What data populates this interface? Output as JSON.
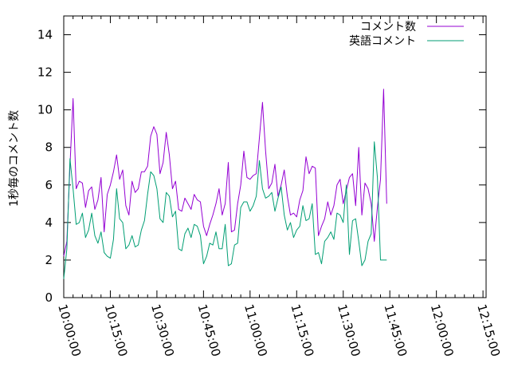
{
  "chart_data": {
    "type": "line",
    "title": "",
    "xlabel": "",
    "ylabel": "1秒毎のコメント数",
    "ylim": [
      0,
      15
    ],
    "yticks": [
      0,
      2,
      4,
      6,
      8,
      10,
      12,
      14
    ],
    "xlim": [
      "10:00:00",
      "12:16:00"
    ],
    "xticks": [
      "10:00:00",
      "10:15:00",
      "10:30:00",
      "10:45:00",
      "11:00:00",
      "11:15:00",
      "11:30:00",
      "11:45:00",
      "12:00:00",
      "12:15:00"
    ],
    "legend_position": "top-right",
    "grid": false,
    "series": [
      {
        "name": "コメント数",
        "color": "#9400d3",
        "points": [
          [
            "10:00:00",
            2.2
          ],
          [
            "10:01:00",
            3.0
          ],
          [
            "10:02:00",
            7.0
          ],
          [
            "10:03:00",
            10.6
          ],
          [
            "10:04:00",
            5.8
          ],
          [
            "10:05:00",
            6.2
          ],
          [
            "10:06:00",
            6.1
          ],
          [
            "10:07:00",
            4.8
          ],
          [
            "10:08:00",
            5.7
          ],
          [
            "10:09:00",
            5.9
          ],
          [
            "10:10:00",
            4.7
          ],
          [
            "10:11:00",
            5.2
          ],
          [
            "10:12:00",
            6.4
          ],
          [
            "10:13:00",
            3.5
          ],
          [
            "10:14:00",
            5.5
          ],
          [
            "10:15:00",
            6.0
          ],
          [
            "10:16:00",
            6.7
          ],
          [
            "10:17:00",
            7.6
          ],
          [
            "10:18:00",
            6.3
          ],
          [
            "10:19:00",
            6.8
          ],
          [
            "10:20:00",
            4.9
          ],
          [
            "10:21:00",
            4.4
          ],
          [
            "10:22:00",
            6.2
          ],
          [
            "10:23:00",
            5.6
          ],
          [
            "10:24:00",
            5.8
          ],
          [
            "10:25:00",
            6.7
          ],
          [
            "10:26:00",
            6.7
          ],
          [
            "10:27:00",
            7.0
          ],
          [
            "10:28:00",
            8.6
          ],
          [
            "10:29:00",
            9.1
          ],
          [
            "10:30:00",
            8.7
          ],
          [
            "10:31:00",
            6.6
          ],
          [
            "10:32:00",
            7.2
          ],
          [
            "10:33:00",
            8.8
          ],
          [
            "10:34:00",
            7.6
          ],
          [
            "10:35:00",
            5.8
          ],
          [
            "10:36:00",
            6.2
          ],
          [
            "10:37:00",
            4.7
          ],
          [
            "10:38:00",
            4.6
          ],
          [
            "10:39:00",
            5.3
          ],
          [
            "10:40:00",
            5.0
          ],
          [
            "10:41:00",
            4.7
          ],
          [
            "10:42:00",
            5.5
          ],
          [
            "10:43:00",
            5.2
          ],
          [
            "10:44:00",
            5.1
          ],
          [
            "10:45:00",
            3.8
          ],
          [
            "10:46:00",
            3.3
          ],
          [
            "10:47:00",
            3.9
          ],
          [
            "10:48:00",
            4.4
          ],
          [
            "10:49:00",
            5.0
          ],
          [
            "10:50:00",
            5.8
          ],
          [
            "10:51:00",
            4.4
          ],
          [
            "10:52:00",
            5.0
          ],
          [
            "10:53:00",
            7.2
          ],
          [
            "10:54:00",
            3.5
          ],
          [
            "10:55:00",
            3.6
          ],
          [
            "10:56:00",
            5.0
          ],
          [
            "10:57:00",
            6.0
          ],
          [
            "10:58:00",
            7.8
          ],
          [
            "10:59:00",
            6.4
          ],
          [
            "11:00:00",
            6.3
          ],
          [
            "11:01:00",
            6.5
          ],
          [
            "11:02:00",
            6.6
          ],
          [
            "11:03:00",
            8.5
          ],
          [
            "11:04:00",
            10.4
          ],
          [
            "11:05:00",
            7.8
          ],
          [
            "11:06:00",
            5.8
          ],
          [
            "11:07:00",
            6.1
          ],
          [
            "11:08:00",
            7.1
          ],
          [
            "11:09:00",
            5.4
          ],
          [
            "11:10:00",
            6.0
          ],
          [
            "11:11:00",
            6.8
          ],
          [
            "11:12:00",
            5.4
          ],
          [
            "11:13:00",
            4.4
          ],
          [
            "11:14:00",
            4.5
          ],
          [
            "11:15:00",
            4.3
          ],
          [
            "11:16:00",
            5.2
          ],
          [
            "11:17:00",
            5.7
          ],
          [
            "11:18:00",
            7.5
          ],
          [
            "11:19:00",
            6.6
          ],
          [
            "11:20:00",
            7.0
          ],
          [
            "11:21:00",
            6.9
          ],
          [
            "11:22:00",
            3.3
          ],
          [
            "11:23:00",
            3.8
          ],
          [
            "11:24:00",
            4.2
          ],
          [
            "11:25:00",
            5.1
          ],
          [
            "11:26:00",
            4.4
          ],
          [
            "11:27:00",
            4.9
          ],
          [
            "11:28:00",
            6.0
          ],
          [
            "11:29:00",
            6.3
          ],
          [
            "11:30:00",
            5.0
          ],
          [
            "11:31:00",
            5.7
          ],
          [
            "11:32:00",
            6.4
          ],
          [
            "11:33:00",
            6.6
          ],
          [
            "11:34:00",
            4.9
          ],
          [
            "11:35:00",
            8.0
          ],
          [
            "11:36:00",
            4.4
          ],
          [
            "11:37:00",
            6.1
          ],
          [
            "11:38:00",
            5.8
          ],
          [
            "11:39:00",
            5.0
          ],
          [
            "11:40:00",
            3.0
          ],
          [
            "11:41:00",
            4.8
          ],
          [
            "11:42:00",
            6.3
          ],
          [
            "11:43:00",
            11.1
          ],
          [
            "11:44:00",
            5.0
          ]
        ]
      },
      {
        "name": "英語コメント",
        "color": "#009e73",
        "points": [
          [
            "10:00:00",
            1.0
          ],
          [
            "10:01:00",
            2.6
          ],
          [
            "10:02:00",
            7.4
          ],
          [
            "10:03:00",
            5.8
          ],
          [
            "10:04:00",
            3.9
          ],
          [
            "10:05:00",
            4.0
          ],
          [
            "10:06:00",
            4.5
          ],
          [
            "10:07:00",
            3.2
          ],
          [
            "10:08:00",
            3.6
          ],
          [
            "10:09:00",
            4.5
          ],
          [
            "10:10:00",
            3.3
          ],
          [
            "10:11:00",
            2.9
          ],
          [
            "10:12:00",
            3.5
          ],
          [
            "10:13:00",
            2.4
          ],
          [
            "10:14:00",
            2.2
          ],
          [
            "10:15:00",
            2.1
          ],
          [
            "10:16:00",
            3.1
          ],
          [
            "10:17:00",
            5.8
          ],
          [
            "10:18:00",
            4.2
          ],
          [
            "10:19:00",
            4.0
          ],
          [
            "10:20:00",
            2.6
          ],
          [
            "10:21:00",
            2.8
          ],
          [
            "10:22:00",
            3.3
          ],
          [
            "10:23:00",
            2.7
          ],
          [
            "10:24:00",
            2.8
          ],
          [
            "10:25:00",
            3.6
          ],
          [
            "10:26:00",
            4.1
          ],
          [
            "10:27:00",
            5.5
          ],
          [
            "10:28:00",
            6.7
          ],
          [
            "10:29:00",
            6.5
          ],
          [
            "10:30:00",
            5.8
          ],
          [
            "10:31:00",
            4.2
          ],
          [
            "10:32:00",
            4.0
          ],
          [
            "10:33:00",
            5.6
          ],
          [
            "10:34:00",
            5.4
          ],
          [
            "10:35:00",
            4.3
          ],
          [
            "10:36:00",
            4.6
          ],
          [
            "10:37:00",
            2.6
          ],
          [
            "10:38:00",
            2.5
          ],
          [
            "10:39:00",
            3.4
          ],
          [
            "10:40:00",
            3.7
          ],
          [
            "10:41:00",
            3.2
          ],
          [
            "10:42:00",
            3.9
          ],
          [
            "10:43:00",
            3.8
          ],
          [
            "10:44:00",
            3.3
          ],
          [
            "10:45:00",
            1.8
          ],
          [
            "10:46:00",
            2.2
          ],
          [
            "10:47:00",
            2.9
          ],
          [
            "10:48:00",
            2.8
          ],
          [
            "10:49:00",
            3.5
          ],
          [
            "10:50:00",
            2.6
          ],
          [
            "10:51:00",
            2.6
          ],
          [
            "10:52:00",
            3.9
          ],
          [
            "10:53:00",
            1.7
          ],
          [
            "10:54:00",
            1.8
          ],
          [
            "10:55:00",
            2.8
          ],
          [
            "10:56:00",
            2.9
          ],
          [
            "10:57:00",
            4.8
          ],
          [
            "10:58:00",
            5.1
          ],
          [
            "10:59:00",
            5.1
          ],
          [
            "11:00:00",
            4.6
          ],
          [
            "11:01:00",
            4.9
          ],
          [
            "11:02:00",
            5.4
          ],
          [
            "11:03:00",
            7.3
          ],
          [
            "11:04:00",
            5.8
          ],
          [
            "11:05:00",
            5.3
          ],
          [
            "11:06:00",
            5.4
          ],
          [
            "11:07:00",
            5.6
          ],
          [
            "11:08:00",
            4.6
          ],
          [
            "11:09:00",
            5.3
          ],
          [
            "11:10:00",
            5.9
          ],
          [
            "11:11:00",
            4.4
          ],
          [
            "11:12:00",
            3.6
          ],
          [
            "11:13:00",
            4.0
          ],
          [
            "11:14:00",
            3.2
          ],
          [
            "11:15:00",
            3.6
          ],
          [
            "11:16:00",
            3.8
          ],
          [
            "11:17:00",
            4.9
          ],
          [
            "11:18:00",
            4.1
          ],
          [
            "11:19:00",
            4.2
          ],
          [
            "11:20:00",
            5.0
          ],
          [
            "11:21:00",
            2.3
          ],
          [
            "11:22:00",
            2.4
          ],
          [
            "11:23:00",
            1.8
          ],
          [
            "11:24:00",
            3.0
          ],
          [
            "11:25:00",
            3.2
          ],
          [
            "11:26:00",
            3.5
          ],
          [
            "11:27:00",
            3.1
          ],
          [
            "11:28:00",
            4.5
          ],
          [
            "11:29:00",
            4.4
          ],
          [
            "11:30:00",
            4.0
          ],
          [
            "11:31:00",
            6.0
          ],
          [
            "11:32:00",
            2.3
          ],
          [
            "11:33:00",
            4.1
          ],
          [
            "11:34:00",
            4.2
          ],
          [
            "11:35:00",
            3.0
          ],
          [
            "11:36:00",
            1.7
          ],
          [
            "11:37:00",
            2.0
          ],
          [
            "11:38:00",
            3.0
          ],
          [
            "11:39:00",
            3.4
          ],
          [
            "11:40:00",
            8.3
          ],
          [
            "11:41:00",
            6.4
          ],
          [
            "11:42:00",
            2.0
          ],
          [
            "11:43:00",
            2.0
          ],
          [
            "11:44:00",
            2.0
          ]
        ]
      }
    ]
  }
}
